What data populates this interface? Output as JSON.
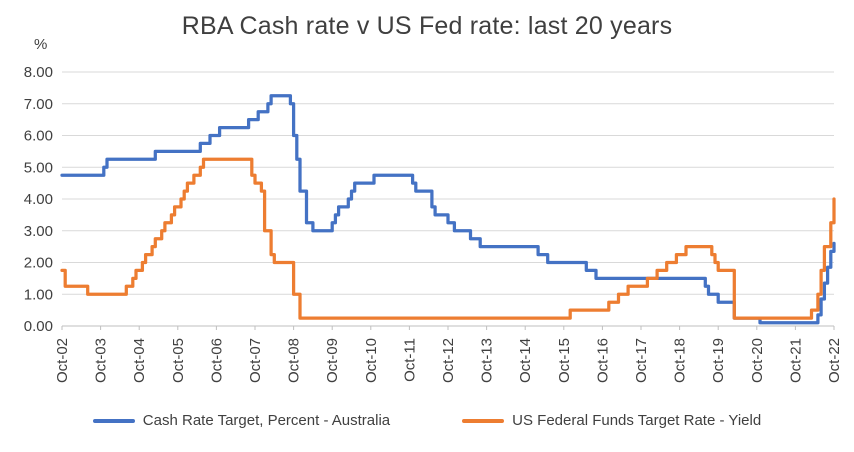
{
  "chart_data": {
    "type": "line",
    "title": "RBA Cash rate v US Fed rate: last 20 years",
    "ylabel": "%",
    "xlabel": "",
    "ylim": [
      0,
      8
    ],
    "grid": true,
    "legend_position": "bottom",
    "y_ticks": [
      "0.00",
      "1.00",
      "2.00",
      "3.00",
      "4.00",
      "5.00",
      "6.00",
      "7.00",
      "8.00"
    ],
    "x_tick_labels": [
      "Oct-02",
      "Oct-03",
      "Oct-04",
      "Oct-05",
      "Oct-06",
      "Oct-07",
      "Oct-08",
      "Oct-09",
      "Oct-10",
      "Oct-11",
      "Oct-12",
      "Oct-13",
      "Oct-14",
      "Oct-15",
      "Oct-16",
      "Oct-17",
      "Oct-18",
      "Oct-19",
      "Oct-20",
      "Oct-21",
      "Oct-22"
    ],
    "x_months_total": 240,
    "x_start_label": "Oct-02",
    "x_end_label": "Oct-22",
    "series": [
      {
        "name": "Cash Rate Target, Percent - Australia",
        "color": "#4472C4",
        "step_points": [
          [
            0,
            4.75
          ],
          [
            13,
            5.0
          ],
          [
            14,
            5.25
          ],
          [
            29,
            5.5
          ],
          [
            43,
            5.75
          ],
          [
            46,
            6.0
          ],
          [
            49,
            6.25
          ],
          [
            58,
            6.5
          ],
          [
            61,
            6.75
          ],
          [
            64,
            7.0
          ],
          [
            65,
            7.25
          ],
          [
            71,
            7.0
          ],
          [
            72,
            6.0
          ],
          [
            73,
            5.25
          ],
          [
            74,
            4.25
          ],
          [
            76,
            3.25
          ],
          [
            78,
            3.0
          ],
          [
            84,
            3.25
          ],
          [
            85,
            3.5
          ],
          [
            86,
            3.75
          ],
          [
            89,
            4.0
          ],
          [
            90,
            4.25
          ],
          [
            91,
            4.5
          ],
          [
            97,
            4.75
          ],
          [
            109,
            4.5
          ],
          [
            110,
            4.25
          ],
          [
            115,
            3.75
          ],
          [
            116,
            3.5
          ],
          [
            120,
            3.25
          ],
          [
            122,
            3.0
          ],
          [
            127,
            2.75
          ],
          [
            130,
            2.5
          ],
          [
            148,
            2.25
          ],
          [
            151,
            2.0
          ],
          [
            163,
            1.75
          ],
          [
            166,
            1.5
          ],
          [
            200,
            1.25
          ],
          [
            201,
            1.0
          ],
          [
            204,
            0.75
          ],
          [
            209,
            0.25
          ],
          [
            217,
            0.1
          ],
          [
            235,
            0.35
          ],
          [
            236,
            0.85
          ],
          [
            237,
            1.35
          ],
          [
            238,
            1.85
          ],
          [
            239,
            2.35
          ],
          [
            240,
            2.6
          ]
        ]
      },
      {
        "name": "US Federal Funds Target Rate - Yield",
        "color": "#ED7D31",
        "step_points": [
          [
            0,
            1.75
          ],
          [
            1,
            1.25
          ],
          [
            8,
            1.0
          ],
          [
            20,
            1.25
          ],
          [
            22,
            1.5
          ],
          [
            23,
            1.75
          ],
          [
            25,
            2.0
          ],
          [
            26,
            2.25
          ],
          [
            28,
            2.5
          ],
          [
            29,
            2.75
          ],
          [
            31,
            3.0
          ],
          [
            32,
            3.25
          ],
          [
            34,
            3.5
          ],
          [
            35,
            3.75
          ],
          [
            37,
            4.0
          ],
          [
            38,
            4.25
          ],
          [
            39,
            4.5
          ],
          [
            41,
            4.75
          ],
          [
            43,
            5.0
          ],
          [
            44,
            5.25
          ],
          [
            59,
            4.75
          ],
          [
            60,
            4.5
          ],
          [
            62,
            4.25
          ],
          [
            63,
            3.0
          ],
          [
            65,
            2.25
          ],
          [
            66,
            2.0
          ],
          [
            72,
            1.0
          ],
          [
            74,
            0.25
          ],
          [
            158,
            0.5
          ],
          [
            170,
            0.75
          ],
          [
            173,
            1.0
          ],
          [
            176,
            1.25
          ],
          [
            182,
            1.5
          ],
          [
            185,
            1.75
          ],
          [
            188,
            2.0
          ],
          [
            191,
            2.25
          ],
          [
            194,
            2.5
          ],
          [
            202,
            2.25
          ],
          [
            203,
            2.0
          ],
          [
            204,
            1.75
          ],
          [
            209,
            0.25
          ],
          [
            233,
            0.5
          ],
          [
            235,
            1.0
          ],
          [
            236,
            1.75
          ],
          [
            237,
            2.5
          ],
          [
            239,
            3.25
          ],
          [
            240,
            4.0
          ]
        ]
      }
    ]
  },
  "style": {
    "gridline_color": "#d9d9d9",
    "axis_color": "#bfbfbf",
    "tick_label_color": "#404040"
  }
}
